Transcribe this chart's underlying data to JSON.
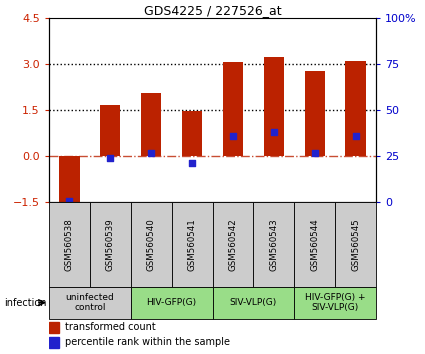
{
  "title": "GDS4225 / 227526_at",
  "categories": [
    "GSM560538",
    "GSM560539",
    "GSM560540",
    "GSM560541",
    "GSM560542",
    "GSM560543",
    "GSM560544",
    "GSM560545"
  ],
  "red_values": [
    -1.55,
    1.65,
    2.05,
    1.45,
    3.05,
    3.22,
    2.75,
    3.1
  ],
  "blue_values_left": [
    -1.48,
    -0.06,
    0.08,
    -0.22,
    0.65,
    0.78,
    0.08,
    0.65
  ],
  "ylim_left": [
    -1.5,
    4.5
  ],
  "ylim_right": [
    0,
    100
  ],
  "yticks_left": [
    -1.5,
    0,
    1.5,
    3,
    4.5
  ],
  "yticks_right": [
    0,
    25,
    50,
    75,
    100
  ],
  "dotted_lines": [
    1.5,
    3.0
  ],
  "dashed_line_y": 0,
  "red_color": "#bb2200",
  "blue_color": "#2222cc",
  "bar_width": 0.5,
  "group_configs": [
    {
      "start": 0,
      "end": 1,
      "label": "uninfected\ncontrol",
      "color": "#cccccc"
    },
    {
      "start": 2,
      "end": 3,
      "label": "HIV-GFP(G)",
      "color": "#99dd88"
    },
    {
      "start": 4,
      "end": 5,
      "label": "SIV-VLP(G)",
      "color": "#99dd88"
    },
    {
      "start": 6,
      "end": 7,
      "label": "HIV-GFP(G) +\nSIV-VLP(G)",
      "color": "#99dd88"
    }
  ],
  "sample_box_color": "#cccccc",
  "legend_red_label": "transformed count",
  "legend_blue_label": "percentile rank within the sample",
  "infection_label": "infection",
  "tick_color_left": "#cc2200",
  "tick_color_right": "#0000cc",
  "bg_color": "#ffffff"
}
